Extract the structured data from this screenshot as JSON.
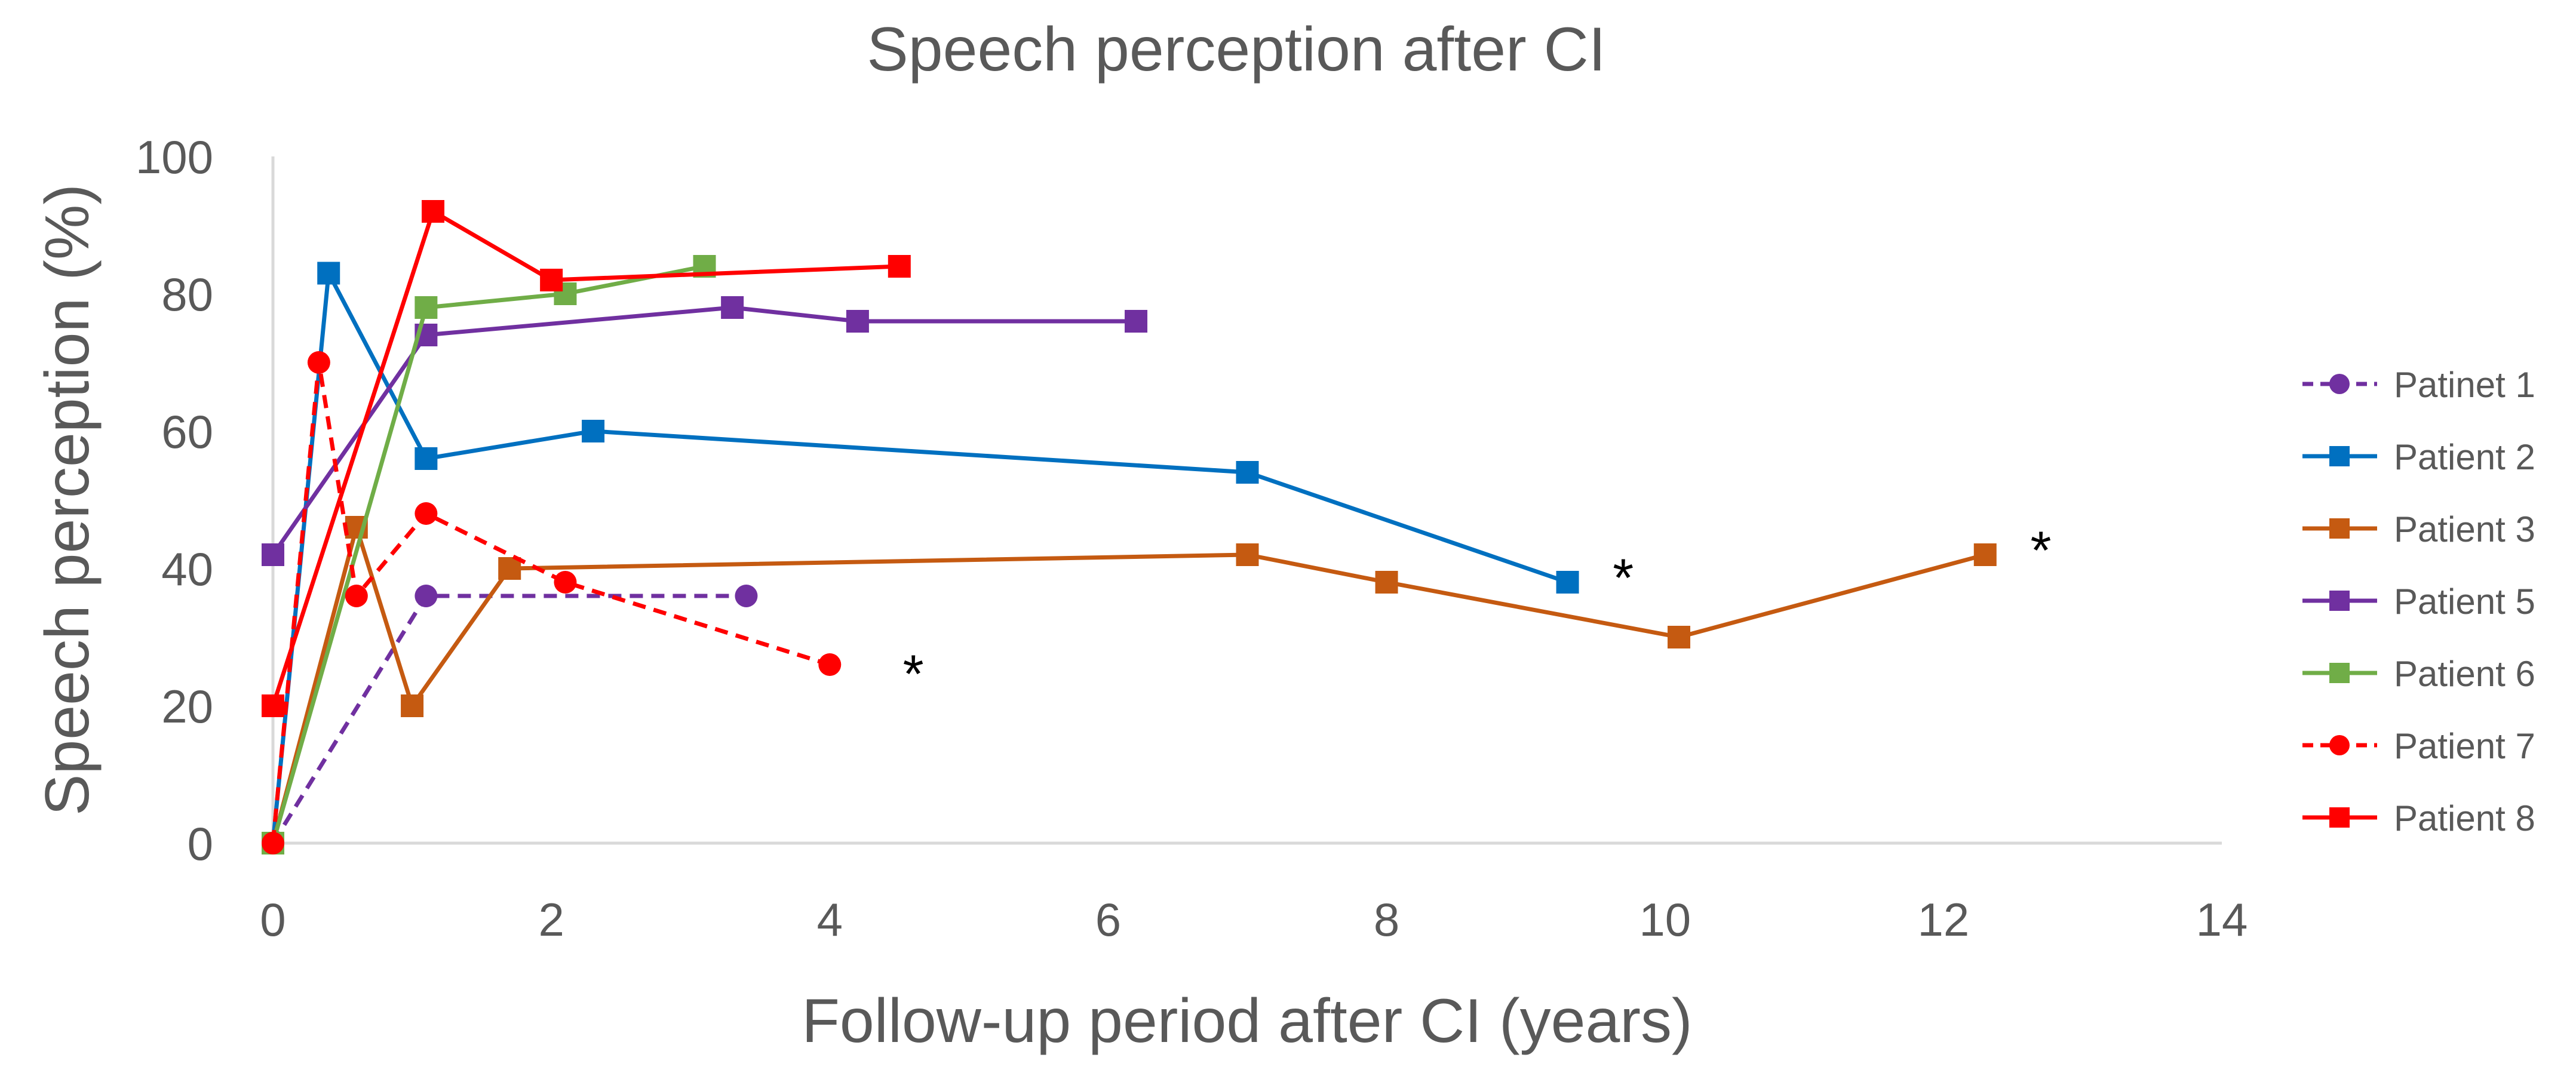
{
  "chart_data": {
    "type": "line",
    "title": "Speech perception after CI",
    "xlabel": "Follow-up period after CI (years)",
    "ylabel": "Speech perception (%)",
    "xlim": [
      0,
      14
    ],
    "ylim": [
      0,
      100
    ],
    "xticks": [
      0,
      2,
      4,
      6,
      8,
      10,
      12,
      14
    ],
    "yticks": [
      0,
      20,
      40,
      60,
      80,
      100
    ],
    "grid": false,
    "legend_position": "right",
    "colors": {
      "purple": "#7030A0",
      "blue": "#0070C0",
      "orange": "#C55A11",
      "green": "#70AD47",
      "red": "#FF0000",
      "axis": "#D9D9D9",
      "text": "#595959"
    },
    "series": [
      {
        "name": "Patinet 1",
        "color": "#7030A0",
        "dash": true,
        "marker": "circle",
        "x": [
          0,
          1.1,
          3.4
        ],
        "y": [
          0,
          36,
          36
        ]
      },
      {
        "name": "Patient 2",
        "color": "#0070C0",
        "dash": false,
        "marker": "square",
        "x": [
          0,
          0.4,
          1.1,
          2.3,
          7.0,
          9.3
        ],
        "y": [
          0,
          83,
          56,
          60,
          54,
          38
        ]
      },
      {
        "name": "Patient 3",
        "color": "#C55A11",
        "dash": false,
        "marker": "square",
        "x": [
          0,
          0.6,
          1.0,
          1.7,
          7.0,
          8.0,
          10.1,
          12.3
        ],
        "y": [
          0,
          46,
          20,
          40,
          42,
          38,
          30,
          42
        ]
      },
      {
        "name": "Patient 5",
        "color": "#7030A0",
        "dash": false,
        "marker": "square",
        "x": [
          0,
          1.1,
          3.3,
          4.2,
          6.2
        ],
        "y": [
          42,
          74,
          78,
          76,
          76
        ]
      },
      {
        "name": "Patient 6",
        "color": "#70AD47",
        "dash": false,
        "marker": "square",
        "x": [
          0,
          1.1,
          2.1,
          3.1
        ],
        "y": [
          0,
          78,
          80,
          84
        ]
      },
      {
        "name": "Patient 7",
        "color": "#FF0000",
        "dash": true,
        "marker": "circle",
        "x": [
          0,
          0.33,
          0.6,
          1.1,
          2.1,
          4.0
        ],
        "y": [
          0,
          70,
          36,
          48,
          38,
          26
        ]
      },
      {
        "name": "Patient 8",
        "color": "#FF0000",
        "dash": false,
        "marker": "square",
        "x": [
          0,
          1.15,
          2.0,
          4.5
        ],
        "y": [
          20,
          92,
          82,
          84
        ]
      }
    ],
    "annotations": [
      {
        "text": "*",
        "x": 4.6,
        "y": 25
      },
      {
        "text": "*",
        "x": 9.7,
        "y": 39
      },
      {
        "text": "*",
        "x": 12.7,
        "y": 43
      }
    ]
  }
}
